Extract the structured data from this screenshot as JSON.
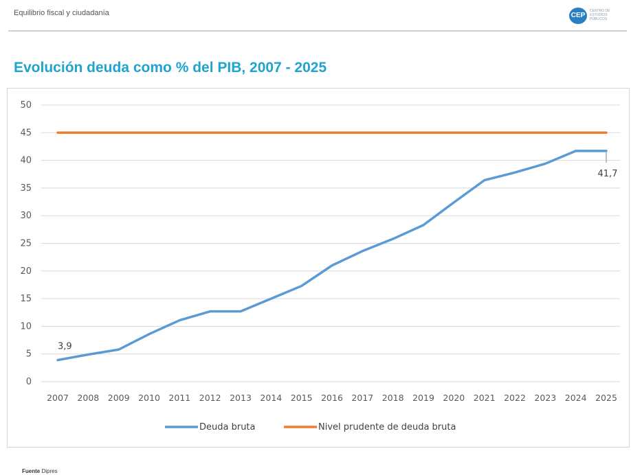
{
  "header": {
    "section": "Equilibrio fiscal y ciudadanía",
    "logo_text": "CEP",
    "logo_subtext": "CENTRO DE ESTUDIOS PÚBLICOS"
  },
  "footer": {
    "label": "Fuente",
    "source": "Dipres"
  },
  "colors": {
    "title": "#1fa3cf",
    "debt_series": "#5b9bd5",
    "prudent_series": "#ed7d31",
    "grid": "#d9d9d9"
  },
  "chart_data": {
    "type": "line",
    "title": "Evolución deuda como % del PIB, 2007 - 2025",
    "x": [
      "2007",
      "2008",
      "2009",
      "2010",
      "2011",
      "2012",
      "2013",
      "2014",
      "2015",
      "2016",
      "2017",
      "2018",
      "2019",
      "2020",
      "2021",
      "2022",
      "2023",
      "2024",
      "2025"
    ],
    "series": [
      {
        "name": "Deuda bruta",
        "values": [
          3.9,
          4.9,
          5.8,
          8.6,
          11.1,
          12.7,
          12.7,
          15.0,
          17.3,
          21.0,
          23.6,
          25.8,
          28.3,
          32.4,
          36.4,
          37.8,
          39.4,
          41.7,
          41.7
        ]
      },
      {
        "name": "Nivel prudente de deuda bruta",
        "values": [
          45,
          45,
          45,
          45,
          45,
          45,
          45,
          45,
          45,
          45,
          45,
          45,
          45,
          45,
          45,
          45,
          45,
          45,
          45
        ]
      }
    ],
    "data_labels": [
      {
        "series": 0,
        "index": 0,
        "text": "3,9"
      },
      {
        "series": 0,
        "index": 18,
        "text": "41,7"
      }
    ],
    "yticks": [
      "0",
      "5",
      "10",
      "15",
      "20",
      "25",
      "30",
      "35",
      "40",
      "45",
      "50"
    ],
    "ylim": [
      0,
      50
    ],
    "grid": true,
    "legend": "bottom-center"
  }
}
